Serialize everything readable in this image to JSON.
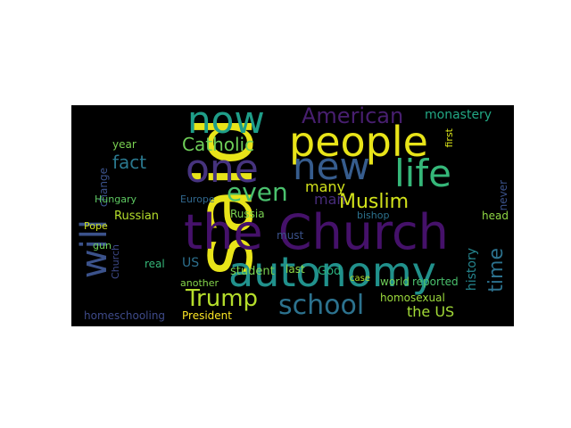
{
  "word_cloud": {
    "background": "#000000",
    "words": [
      {
        "text": "said",
        "color": "#e8e419"
      },
      {
        "text": "the Church",
        "color": "#45116a"
      },
      {
        "text": "autonomy",
        "color": "#21918c"
      },
      {
        "text": "people",
        "color": "#e8e419"
      },
      {
        "text": "one",
        "color": "#46337e"
      },
      {
        "text": "new",
        "color": "#365c8d"
      },
      {
        "text": "life",
        "color": "#35b779"
      },
      {
        "text": "now",
        "color": "#1f9e89"
      },
      {
        "text": "will",
        "color": "#3b528b"
      },
      {
        "text": "school",
        "color": "#2c728e"
      },
      {
        "text": "Trump",
        "color": "#b5de2b"
      },
      {
        "text": "even",
        "color": "#4ac16d"
      },
      {
        "text": "American",
        "color": "#481f70"
      },
      {
        "text": "Muslim",
        "color": "#d2e21b"
      },
      {
        "text": "Catholic",
        "color": "#6ece58"
      },
      {
        "text": "fact",
        "color": "#2a788e"
      },
      {
        "text": "monastery",
        "color": "#22a884"
      },
      {
        "text": "time",
        "color": "#2c728e"
      },
      {
        "text": "many",
        "color": "#d2e21b"
      },
      {
        "text": "man",
        "color": "#472c7a"
      },
      {
        "text": "Russia",
        "color": "#7ad151"
      },
      {
        "text": "Russian",
        "color": "#b5de2b"
      },
      {
        "text": "the US",
        "color": "#a2da37"
      },
      {
        "text": "history",
        "color": "#25858e"
      },
      {
        "text": "homeschooling",
        "color": "#3e4a89"
      },
      {
        "text": "year",
        "color": "#7ad151"
      },
      {
        "text": "change",
        "color": "#3b528b"
      },
      {
        "text": "Hungary",
        "color": "#5ec962"
      },
      {
        "text": "Pope",
        "color": "#cde11d"
      },
      {
        "text": "Church",
        "color": "#3e4a89"
      },
      {
        "text": "gun",
        "color": "#6ece58"
      },
      {
        "text": "US",
        "color": "#2d708e"
      },
      {
        "text": "real",
        "color": "#35b779"
      },
      {
        "text": "Europe",
        "color": "#31688e"
      },
      {
        "text": "student",
        "color": "#7ad151"
      },
      {
        "text": "must",
        "color": "#3b528b"
      },
      {
        "text": "last",
        "color": "#8fd744"
      },
      {
        "text": "God",
        "color": "#2ab07f"
      },
      {
        "text": "another",
        "color": "#84d44b"
      },
      {
        "text": "President",
        "color": "#fde725"
      },
      {
        "text": "case",
        "color": "#b5de2b"
      },
      {
        "text": "world",
        "color": "#6ece58"
      },
      {
        "text": "reported",
        "color": "#4ac16d"
      },
      {
        "text": "homosexual",
        "color": "#9bd93c"
      },
      {
        "text": "bishop",
        "color": "#2c728e"
      },
      {
        "text": "first",
        "color": "#d8e219"
      },
      {
        "text": "never",
        "color": "#3b528b"
      },
      {
        "text": "head",
        "color": "#8fd744"
      }
    ]
  }
}
